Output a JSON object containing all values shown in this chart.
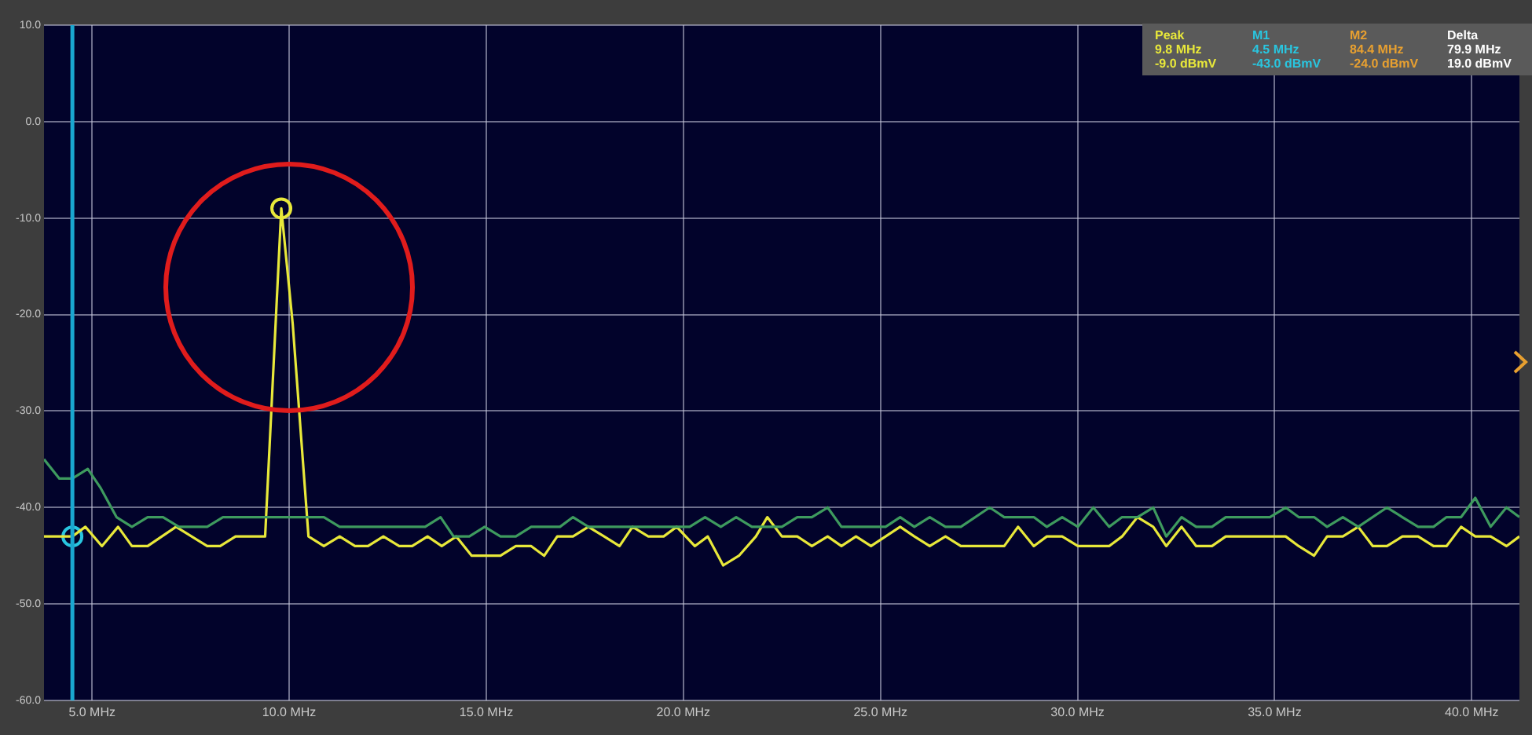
{
  "chart_data": {
    "type": "line",
    "xlim": [
      3.78,
      41.21
    ],
    "xticks": [
      {
        "value": 5,
        "label": "5.0 MHz"
      },
      {
        "value": 10,
        "label": "10.0 MHz"
      },
      {
        "value": 15,
        "label": "15.0 MHz"
      },
      {
        "value": 20,
        "label": "20.0 MHz"
      },
      {
        "value": 25,
        "label": "25.0 MHz"
      },
      {
        "value": 30,
        "label": "30.0 MHz"
      },
      {
        "value": 35,
        "label": "35.0 MHz"
      },
      {
        "value": 40,
        "label": "40.0 MHz"
      }
    ],
    "ylim": [
      -60,
      10
    ],
    "yticks": [
      {
        "value": 10,
        "label": "10.0"
      },
      {
        "value": 0,
        "label": "0.0"
      },
      {
        "value": -10,
        "label": "-10.0"
      },
      {
        "value": -20,
        "label": "-20.0"
      },
      {
        "value": -30,
        "label": "-30.0"
      },
      {
        "value": -40,
        "label": "-40.0"
      },
      {
        "value": -50,
        "label": "-50.0"
      },
      {
        "value": -60,
        "label": "-60.0"
      }
    ],
    "grid": true,
    "legend": false,
    "series": [
      {
        "color": "#3e9a5e",
        "x": [
          3.78,
          4.17,
          4.5,
          4.89,
          5.22,
          5.62,
          6.01,
          6.41,
          6.8,
          7.2,
          7.92,
          8.32,
          9.39,
          10.55,
          10.88,
          11.28,
          13.45,
          13.84,
          14.17,
          14.57,
          14.96,
          15.36,
          15.75,
          16.14,
          16.87,
          17.2,
          17.59,
          20.16,
          20.55,
          20.95,
          21.34,
          21.74,
          22.5,
          22.89,
          23.26,
          23.66,
          24.01,
          25.13,
          25.5,
          25.86,
          26.25,
          26.65,
          27.04,
          27.77,
          28.14,
          28.89,
          29.22,
          29.61,
          30.01,
          30.4,
          30.8,
          31.13,
          31.52,
          31.92,
          32.25,
          32.64,
          33.01,
          33.41,
          33.76,
          34.88,
          35.28,
          35.61,
          36.0,
          36.33,
          36.73,
          37.12,
          37.85,
          38.24,
          38.64,
          39.03,
          39.36,
          39.73,
          40.09,
          40.48,
          40.88,
          41.21
        ],
        "values": [
          -35,
          -37,
          -37,
          -36,
          -38,
          -41,
          -42,
          -41,
          -41,
          -42,
          -42,
          -41,
          -41,
          -41,
          -41,
          -42,
          -42,
          -41,
          -43,
          -43,
          -42,
          -43,
          -43,
          -42,
          -42,
          -41,
          -42,
          -42,
          -41,
          -42,
          -41,
          -42,
          -42,
          -41,
          -41,
          -40,
          -42,
          -42,
          -41,
          -42,
          -41,
          -42,
          -42,
          -40,
          -41,
          -41,
          -42,
          -41,
          -42,
          -40,
          -42,
          -41,
          -41,
          -40,
          -43,
          -41,
          -42,
          -42,
          -41,
          -41,
          -40,
          -41,
          -41,
          -42,
          -41,
          -42,
          -40,
          -41,
          -42,
          -42,
          -41,
          -41,
          -39,
          -42,
          -40,
          -41
        ]
      },
      {
        "color": "#e8e83a",
        "x": [
          3.78,
          4.5,
          4.83,
          5.25,
          5.66,
          6.01,
          6.41,
          7.13,
          7.92,
          8.25,
          8.64,
          9.39,
          9.8,
          10.09,
          10.49,
          10.88,
          11.28,
          11.67,
          12.0,
          12.39,
          12.79,
          13.12,
          13.51,
          13.87,
          14.24,
          14.63,
          15.36,
          15.75,
          16.14,
          16.47,
          16.8,
          17.2,
          17.59,
          17.99,
          18.38,
          18.71,
          19.11,
          19.5,
          19.83,
          20.29,
          20.62,
          21.01,
          21.41,
          21.84,
          22.13,
          22.5,
          22.89,
          23.26,
          23.66,
          24.01,
          24.38,
          24.76,
          25.13,
          25.5,
          25.86,
          26.25,
          26.65,
          27.04,
          28.14,
          28.49,
          28.89,
          29.22,
          29.61,
          30.01,
          30.8,
          31.13,
          31.52,
          31.92,
          32.25,
          32.64,
          33.01,
          33.41,
          33.76,
          35.28,
          35.61,
          36.0,
          36.33,
          36.73,
          37.12,
          37.49,
          37.85,
          38.24,
          38.64,
          39.03,
          39.36,
          39.73,
          40.09,
          40.48,
          40.88,
          41.21
        ],
        "values": [
          -43,
          -43,
          -42,
          -44,
          -42,
          -44,
          -44,
          -42,
          -44,
          -44,
          -43,
          -43,
          -9,
          -21,
          -43,
          -44,
          -43,
          -44,
          -44,
          -43,
          -44,
          -44,
          -43,
          -44,
          -43,
          -45,
          -45,
          -44,
          -44,
          -45,
          -43,
          -43,
          -42,
          -43,
          -44,
          -42,
          -43,
          -43,
          -42,
          -44,
          -43,
          -46,
          -45,
          -43,
          -41,
          -43,
          -43,
          -44,
          -43,
          -44,
          -43,
          -44,
          -43,
          -42,
          -43,
          -44,
          -43,
          -44,
          -44,
          -42,
          -44,
          -43,
          -43,
          -44,
          -44,
          -43,
          -41,
          -42,
          -44,
          -42,
          -44,
          -44,
          -43,
          -43,
          -44,
          -45,
          -43,
          -43,
          -42,
          -44,
          -44,
          -43,
          -43,
          -44,
          -44,
          -42,
          -43,
          -43,
          -44,
          -43
        ]
      },
      {
        "type": "scatter",
        "marker": "circle",
        "color": "#e8e83a",
        "x": [
          9.8
        ],
        "values": [
          -9
        ]
      },
      {
        "type": "scatter",
        "marker": "circle",
        "color": "#29c6e0",
        "x": [
          4.5
        ],
        "values": [
          -43
        ]
      }
    ],
    "ref_lines": [
      {
        "axis": "x",
        "value": 4.5,
        "color": "#1aa7d0"
      }
    ],
    "annotations": [
      "Peak",
      "9.8 MHz",
      "-9.0 dBmV",
      "M1",
      "4.5 MHz",
      "-43.0 dBmV",
      "M2",
      "84.4 MHz",
      "-24.0 dBmV",
      "Delta",
      "79.9 MHz",
      "19.0 dBmV"
    ]
  }
}
